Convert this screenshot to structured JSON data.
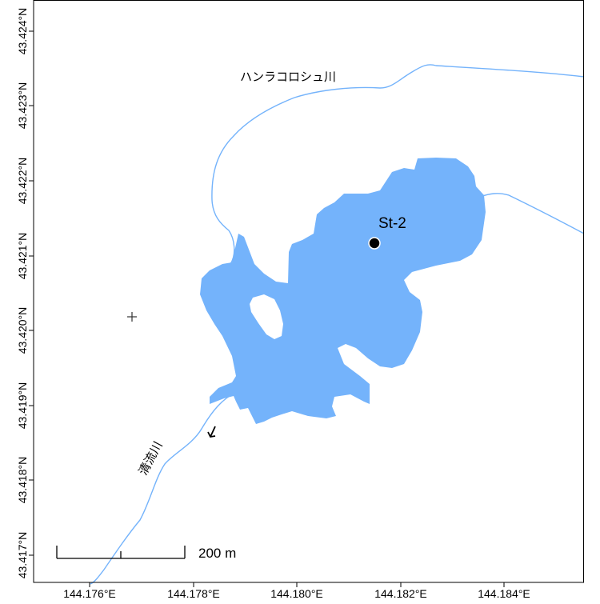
{
  "map": {
    "colors": {
      "water": "#74B3FB",
      "river": "#74B3FB",
      "frame": "#000000",
      "station": "#000000",
      "background": "#ffffff"
    },
    "x_ticks": [
      "144.176°E",
      "144.178°E",
      "144.180°E",
      "144.182°E",
      "144.184°E"
    ],
    "y_ticks": [
      "43.417°N",
      "43.418°N",
      "43.419°N",
      "43.420°N",
      "43.421°N",
      "43.422°N",
      "43.423°N",
      "43.424°N"
    ],
    "rivers": {
      "north": "ハンラコロシュ川",
      "outflow": "清流川"
    },
    "station": {
      "name": "St-2",
      "marker": "filled-circle"
    },
    "scale_bar": {
      "label": "200 m"
    },
    "symbols": {
      "flow_direction": "arrow-icon",
      "marker": "plus-icon"
    }
  }
}
